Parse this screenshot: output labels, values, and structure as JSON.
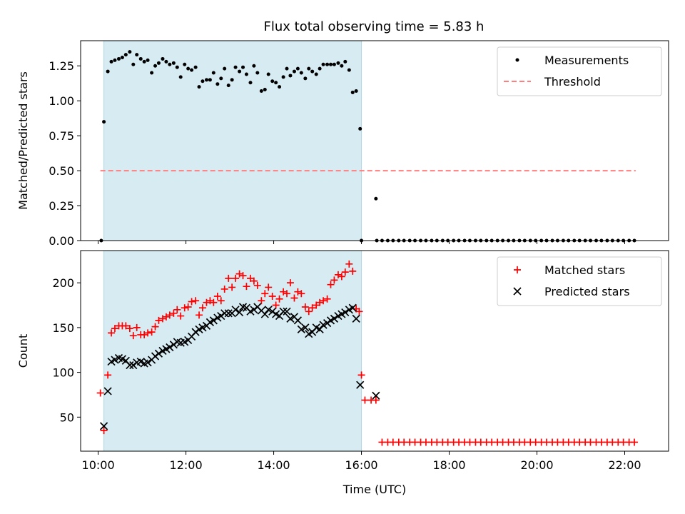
{
  "title": "Flux total observing time = 5.83 h",
  "colors": {
    "shade": "#add8e6",
    "threshold": "#ff7f7f",
    "matched": "#ff0000",
    "predicted": "#000000",
    "measurement": "#000000"
  },
  "chart_data": [
    {
      "type": "scatter",
      "ylabel": "Matched/Predicted stars",
      "xlim": [
        9.6,
        23.0
      ],
      "ylim": [
        0.0,
        1.43
      ],
      "yticks": [
        "0.00",
        "0.25",
        "0.50",
        "0.75",
        "1.00",
        "1.25"
      ],
      "legend": {
        "placement": "top-right",
        "entries": [
          "Measurements",
          "Threshold"
        ]
      },
      "shaded_interval": [
        10.13,
        16.0
      ],
      "threshold": {
        "name": "Threshold",
        "y": 0.5,
        "x_range": [
          10.05,
          22.25
        ]
      },
      "series": [
        {
          "name": "Measurements",
          "x": [
            10.07,
            10.13,
            10.22,
            10.3,
            10.38,
            10.47,
            10.55,
            10.63,
            10.72,
            10.8,
            10.88,
            10.97,
            11.05,
            11.13,
            11.22,
            11.3,
            11.38,
            11.47,
            11.55,
            11.63,
            11.72,
            11.8,
            11.88,
            11.97,
            12.05,
            12.13,
            12.22,
            12.3,
            12.38,
            12.47,
            12.55,
            12.63,
            12.72,
            12.8,
            12.88,
            12.97,
            13.05,
            13.13,
            13.22,
            13.3,
            13.38,
            13.47,
            13.55,
            13.63,
            13.72,
            13.8,
            13.88,
            13.97,
            14.05,
            14.13,
            14.22,
            14.3,
            14.38,
            14.47,
            14.55,
            14.63,
            14.72,
            14.8,
            14.88,
            14.97,
            15.05,
            15.13,
            15.22,
            15.3,
            15.38,
            15.47,
            15.55,
            15.63,
            15.72,
            15.8,
            15.88,
            15.97,
            16.0,
            16.33,
            16.35,
            16.47,
            16.6,
            16.72,
            16.85,
            16.97,
            17.1,
            17.22,
            17.35,
            17.47,
            17.6,
            17.72,
            17.85,
            17.97,
            18.1,
            18.22,
            18.35,
            18.47,
            18.6,
            18.72,
            18.85,
            18.97,
            19.1,
            19.22,
            19.35,
            19.47,
            19.6,
            19.72,
            19.85,
            19.97,
            20.1,
            20.22,
            20.35,
            20.47,
            20.6,
            20.72,
            20.85,
            20.97,
            21.1,
            21.22,
            21.35,
            21.47,
            21.6,
            21.72,
            21.85,
            21.97,
            22.1,
            22.22
          ],
          "y": [
            0.0,
            0.85,
            1.21,
            1.28,
            1.29,
            1.3,
            1.31,
            1.33,
            1.35,
            1.26,
            1.33,
            1.3,
            1.28,
            1.29,
            1.2,
            1.25,
            1.27,
            1.3,
            1.28,
            1.26,
            1.27,
            1.24,
            1.17,
            1.26,
            1.23,
            1.22,
            1.24,
            1.1,
            1.14,
            1.15,
            1.15,
            1.2,
            1.12,
            1.16,
            1.23,
            1.11,
            1.15,
            1.24,
            1.21,
            1.24,
            1.19,
            1.13,
            1.25,
            1.2,
            1.07,
            1.08,
            1.19,
            1.14,
            1.13,
            1.1,
            1.17,
            1.23,
            1.18,
            1.21,
            1.23,
            1.2,
            1.16,
            1.23,
            1.21,
            1.19,
            1.23,
            1.26,
            1.26,
            1.26,
            1.26,
            1.27,
            1.25,
            1.28,
            1.22,
            1.06,
            1.07,
            0.8,
            0.0,
            0.3,
            0.0,
            0.0,
            0.0,
            0.0,
            0.0,
            0.0,
            0.0,
            0.0,
            0.0,
            0.0,
            0.0,
            0.0,
            0.0,
            0.0,
            0.0,
            0.0,
            0.0,
            0.0,
            0.0,
            0.0,
            0.0,
            0.0,
            0.0,
            0.0,
            0.0,
            0.0,
            0.0,
            0.0,
            0.0,
            0.0,
            0.0,
            0.0,
            0.0,
            0.0,
            0.0,
            0.0,
            0.0,
            0.0,
            0.0,
            0.0,
            0.0,
            0.0,
            0.0,
            0.0,
            0.0,
            0.0,
            0.0,
            0.0
          ]
        }
      ]
    },
    {
      "type": "scatter",
      "xlabel": "Time (UTC)",
      "ylabel": "Count",
      "xlim": [
        9.6,
        23.0
      ],
      "ylim": [
        12,
        236
      ],
      "xticks": [
        {
          "x": 10,
          "label": "10:00"
        },
        {
          "x": 12,
          "label": "12:00"
        },
        {
          "x": 14,
          "label": "14:00"
        },
        {
          "x": 16,
          "label": "16:00"
        },
        {
          "x": 18,
          "label": "18:00"
        },
        {
          "x": 20,
          "label": "20:00"
        },
        {
          "x": 22,
          "label": "22:00"
        }
      ],
      "yticks": [
        "50",
        "100",
        "150",
        "200"
      ],
      "legend": {
        "placement": "top-right",
        "entries": [
          "Matched stars",
          "Predicted stars"
        ]
      },
      "shaded_interval": [
        10.13,
        16.0
      ],
      "series": [
        {
          "name": "Matched stars",
          "x": [
            10.05,
            10.13,
            10.22,
            10.3,
            10.38,
            10.47,
            10.55,
            10.63,
            10.72,
            10.8,
            10.88,
            10.97,
            11.05,
            11.13,
            11.22,
            11.3,
            11.38,
            11.47,
            11.55,
            11.63,
            11.72,
            11.8,
            11.88,
            11.97,
            12.05,
            12.13,
            12.22,
            12.3,
            12.38,
            12.47,
            12.55,
            12.63,
            12.72,
            12.8,
            12.88,
            12.97,
            13.05,
            13.13,
            13.22,
            13.3,
            13.38,
            13.47,
            13.55,
            13.63,
            13.72,
            13.8,
            13.88,
            13.97,
            14.05,
            14.13,
            14.22,
            14.3,
            14.38,
            14.47,
            14.55,
            14.63,
            14.72,
            14.8,
            14.88,
            14.97,
            15.05,
            15.13,
            15.22,
            15.3,
            15.38,
            15.47,
            15.55,
            15.63,
            15.72,
            15.8,
            15.88,
            15.95,
            16.0,
            16.08,
            16.22,
            16.33,
            16.47,
            16.6,
            16.72,
            16.85,
            16.97,
            17.1,
            17.22,
            17.35,
            17.47,
            17.6,
            17.72,
            17.85,
            17.97,
            18.1,
            18.22,
            18.35,
            18.47,
            18.6,
            18.72,
            18.85,
            18.97,
            19.1,
            19.22,
            19.35,
            19.47,
            19.6,
            19.72,
            19.85,
            19.97,
            20.1,
            20.22,
            20.35,
            20.47,
            20.6,
            20.72,
            20.85,
            20.97,
            21.1,
            21.22,
            21.35,
            21.47,
            21.6,
            21.72,
            21.85,
            21.97,
            22.1,
            22.22
          ],
          "y": [
            77,
            35,
            97,
            144,
            149,
            152,
            152,
            152,
            149,
            141,
            150,
            142,
            142,
            144,
            145,
            151,
            158,
            160,
            162,
            164,
            166,
            170,
            163,
            172,
            173,
            179,
            180,
            164,
            172,
            178,
            180,
            178,
            185,
            180,
            193,
            205,
            195,
            205,
            210,
            208,
            196,
            205,
            202,
            197,
            180,
            188,
            195,
            185,
            175,
            182,
            190,
            188,
            200,
            183,
            190,
            188,
            173,
            168,
            172,
            175,
            178,
            180,
            182,
            198,
            203,
            209,
            207,
            212,
            221,
            213,
            171,
            168,
            97,
            69,
            69,
            69,
            22,
            22,
            22,
            22,
            22,
            22,
            22,
            22,
            22,
            22,
            22,
            22,
            22,
            22,
            22,
            22,
            22,
            22,
            22,
            22,
            22,
            22,
            22,
            22,
            22,
            22,
            22,
            22,
            22,
            22,
            22,
            22,
            22,
            22,
            22,
            22,
            22,
            22,
            22,
            22,
            22,
            22,
            22,
            22,
            22,
            22,
            22
          ]
        },
        {
          "name": "Predicted stars",
          "x": [
            10.13,
            10.22,
            10.3,
            10.38,
            10.47,
            10.55,
            10.63,
            10.72,
            10.8,
            10.88,
            10.97,
            11.05,
            11.13,
            11.22,
            11.3,
            11.38,
            11.47,
            11.55,
            11.63,
            11.72,
            11.8,
            11.88,
            11.97,
            12.05,
            12.13,
            12.22,
            12.3,
            12.38,
            12.47,
            12.55,
            12.63,
            12.72,
            12.8,
            12.88,
            12.97,
            13.05,
            13.13,
            13.22,
            13.3,
            13.38,
            13.47,
            13.55,
            13.63,
            13.72,
            13.8,
            13.88,
            13.97,
            14.05,
            14.13,
            14.22,
            14.3,
            14.38,
            14.47,
            14.55,
            14.63,
            14.72,
            14.8,
            14.88,
            14.97,
            15.05,
            15.13,
            15.22,
            15.3,
            15.38,
            15.47,
            15.55,
            15.63,
            15.72,
            15.8,
            15.88,
            15.97,
            16.33
          ],
          "y": [
            40,
            79,
            112,
            114,
            116,
            115,
            113,
            108,
            108,
            111,
            112,
            110,
            111,
            114,
            118,
            121,
            124,
            126,
            128,
            131,
            134,
            133,
            134,
            136,
            140,
            145,
            148,
            150,
            152,
            156,
            158,
            161,
            163,
            166,
            166,
            166,
            170,
            167,
            173,
            172,
            168,
            170,
            173,
            169,
            165,
            170,
            168,
            165,
            163,
            168,
            168,
            160,
            162,
            158,
            148,
            150,
            143,
            145,
            150,
            148,
            153,
            155,
            158,
            160,
            163,
            165,
            167,
            170,
            172,
            160,
            86,
            74
          ]
        }
      ]
    }
  ]
}
